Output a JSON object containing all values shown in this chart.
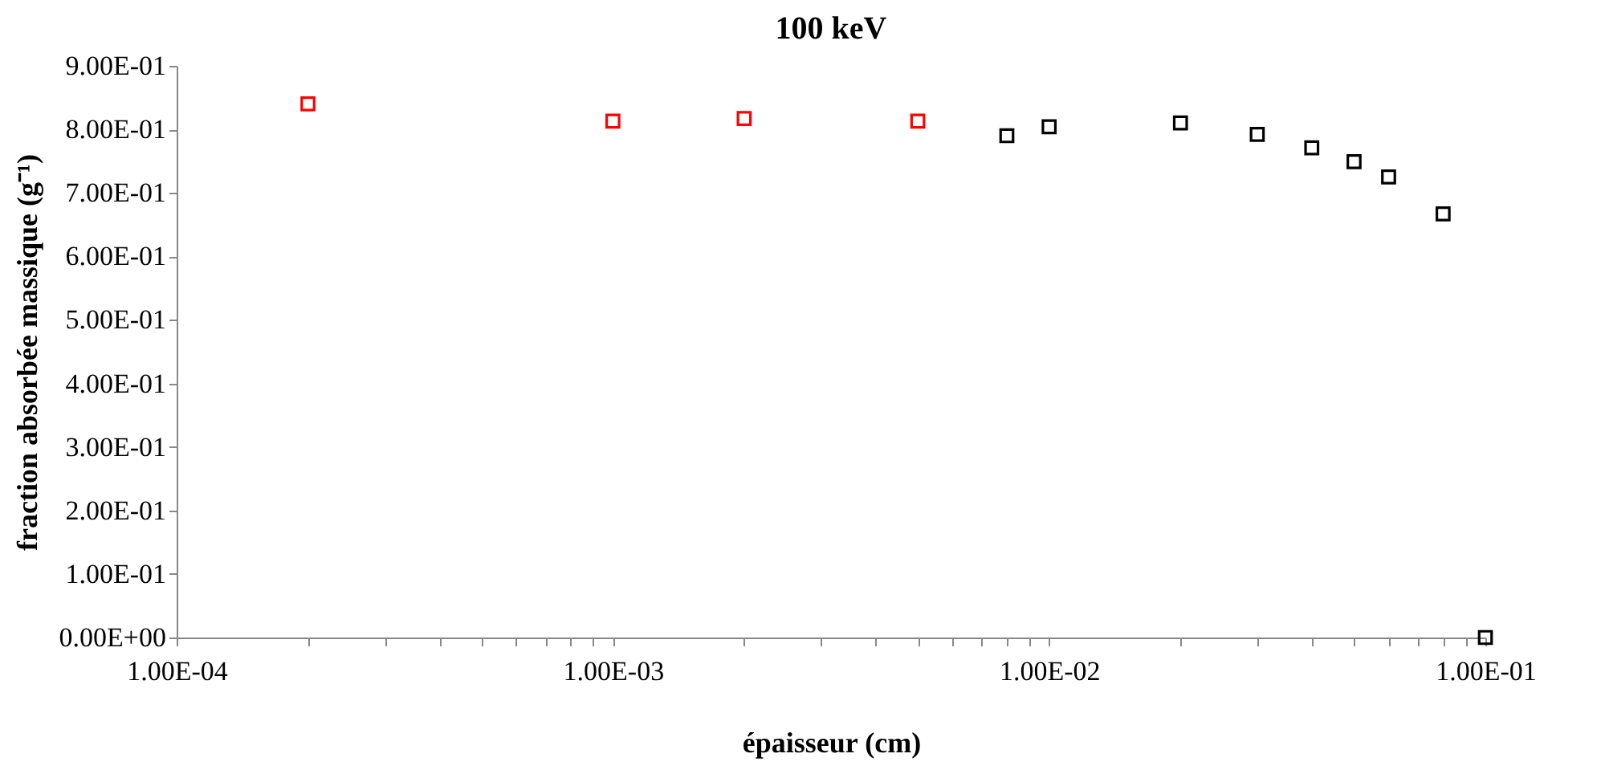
{
  "chart_data": {
    "type": "scatter",
    "title": "100 keV",
    "xlabel": "épaisseur (cm)",
    "ylabel": "fraction absorbée massique (g⁻¹)",
    "log": "x",
    "marker": "square",
    "grid": false,
    "xlim": [
      0.0001,
      0.1
    ],
    "xticks": [
      {
        "value": 0.0001,
        "label": "1.00E-04"
      },
      {
        "value": 0.0002,
        "label": null
      },
      {
        "value": 0.0003,
        "label": null
      },
      {
        "value": 0.0004,
        "label": null
      },
      {
        "value": 0.0005,
        "label": null
      },
      {
        "value": 0.0006,
        "label": null
      },
      {
        "value": 0.0007,
        "label": null
      },
      {
        "value": 0.0008,
        "label": null
      },
      {
        "value": 0.0009,
        "label": null
      },
      {
        "value": 0.001,
        "label": "1.00E-03"
      },
      {
        "value": 0.002,
        "label": null
      },
      {
        "value": 0.003,
        "label": null
      },
      {
        "value": 0.004,
        "label": null
      },
      {
        "value": 0.005,
        "label": null
      },
      {
        "value": 0.006,
        "label": null
      },
      {
        "value": 0.007,
        "label": null
      },
      {
        "value": 0.008,
        "label": null
      },
      {
        "value": 0.009,
        "label": null
      },
      {
        "value": 0.01,
        "label": "1.00E-02"
      },
      {
        "value": 0.02,
        "label": null
      },
      {
        "value": 0.03,
        "label": null
      },
      {
        "value": 0.04,
        "label": null
      },
      {
        "value": 0.05,
        "label": null
      },
      {
        "value": 0.06,
        "label": null
      },
      {
        "value": 0.07,
        "label": null
      },
      {
        "value": 0.08,
        "label": null
      },
      {
        "value": 0.09,
        "label": null
      },
      {
        "value": 0.1,
        "label": "1.00E-01"
      }
    ],
    "ylim": [
      0,
      0.9
    ],
    "yticks": [
      {
        "value": 0,
        "label": "0.00E+00"
      },
      {
        "value": 0.1,
        "label": "1.00E-01"
      },
      {
        "value": 0.2,
        "label": "2.00E-01"
      },
      {
        "value": 0.3,
        "label": "3.00E-01"
      },
      {
        "value": 0.4,
        "label": "4.00E-01"
      },
      {
        "value": 0.5,
        "label": "5.00E-01"
      },
      {
        "value": 0.6,
        "label": "6.00E-01"
      },
      {
        "value": 0.7,
        "label": "7.00E-01"
      },
      {
        "value": 0.8,
        "label": "8.00E-01"
      },
      {
        "value": 0.9,
        "label": "9.00E-01"
      }
    ],
    "series": [
      {
        "color": "#ff0000",
        "x": [
          0.0002,
          0.001,
          0.002,
          0.005
        ],
        "values": [
          0.84,
          0.813,
          0.817,
          0.813
        ]
      },
      {
        "color": "#000000",
        "x": [
          0.008,
          0.01,
          0.02,
          0.03,
          0.04,
          0.05,
          0.06,
          0.08,
          0.1
        ],
        "values": [
          0.79,
          0.804,
          0.81,
          0.792,
          0.771,
          0.749,
          0.725,
          0.667,
          0
        ]
      }
    ]
  }
}
